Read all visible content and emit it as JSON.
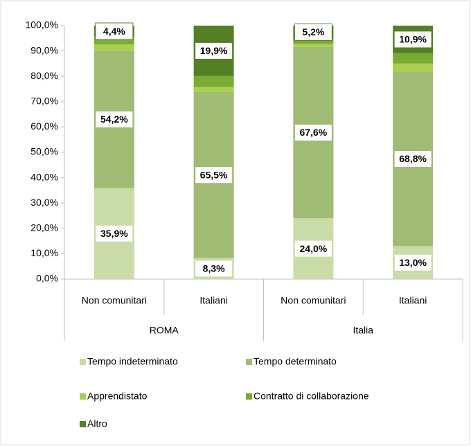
{
  "chart_data": {
    "type": "stacked_bar",
    "categories": [
      "Non comunitari",
      "Italiani",
      "Non comunitari",
      "Italiani"
    ],
    "groups": [
      "ROMA",
      "Italia"
    ],
    "series": [
      {
        "name": "Tempo indeterminato",
        "color": "#c9dca8",
        "values": [
          35.9,
          8.3,
          24.0,
          13.0
        ],
        "value_labels": [
          "35,9%",
          "8,3%",
          "24,0%",
          "13,0%"
        ]
      },
      {
        "name": "Tempo determinato",
        "color": "#9fbb74",
        "values": [
          54.2,
          65.5,
          67.6,
          68.8
        ],
        "value_labels": [
          "54,2%",
          "65,5%",
          "67,6%",
          "68,8%"
        ]
      },
      {
        "name": "Apprendistato",
        "color": "#a9cf4e",
        "values": [
          2.5,
          2.0,
          1.2,
          3.3
        ]
      },
      {
        "name": "Contratto di collaborazione",
        "color": "#79ab35",
        "values": [
          3.0,
          4.3,
          2.0,
          4.0
        ]
      },
      {
        "name": "Altro",
        "color": "#557f25",
        "values": [
          4.4,
          19.9,
          5.2,
          10.9
        ],
        "value_labels": [
          "4,4%",
          "19,9%",
          "5,2%",
          "10,9%"
        ]
      }
    ],
    "ylim": [
      0,
      100
    ],
    "yticks": [
      {
        "value": 0,
        "label": "0,0%"
      },
      {
        "value": 10,
        "label": "10,0%"
      },
      {
        "value": 20,
        "label": "20,0%"
      },
      {
        "value": 30,
        "label": "30,0%"
      },
      {
        "value": 40,
        "label": "40,0%"
      },
      {
        "value": 50,
        "label": "50,0%"
      },
      {
        "value": 60,
        "label": "60,0%"
      },
      {
        "value": 70,
        "label": "70,0%"
      },
      {
        "value": 80,
        "label": "80,0%"
      },
      {
        "value": 90,
        "label": "90,0%"
      },
      {
        "value": 100,
        "label": "100,0%"
      }
    ]
  }
}
